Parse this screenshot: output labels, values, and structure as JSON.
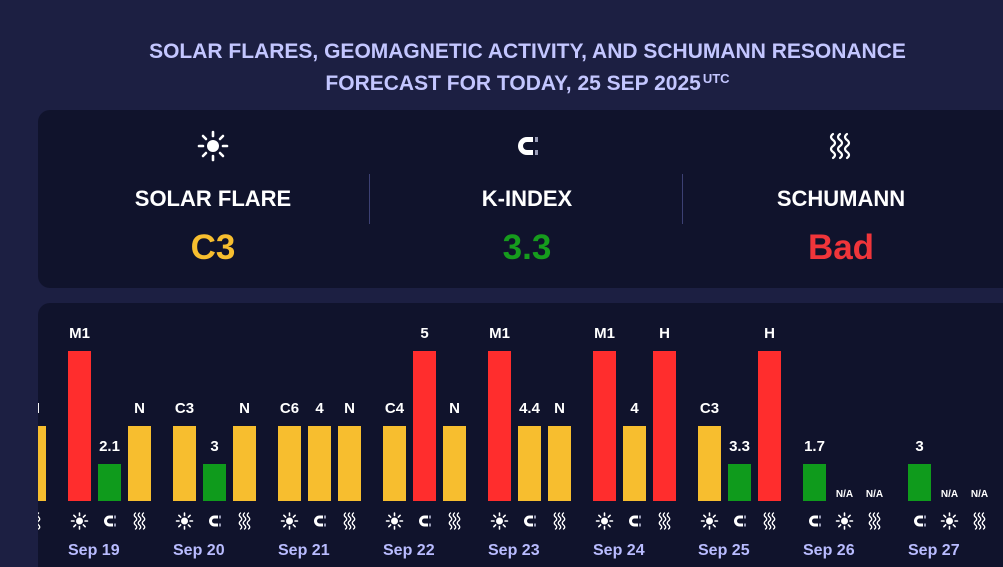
{
  "header": {
    "line1": "SOLAR FLARES, GEOMAGNETIC ACTIVITY, AND SCHUMANN RESONANCE",
    "line2": "FORECAST FOR TODAY, 25 SEP 2025",
    "tz": "UTC"
  },
  "summary": {
    "solar": {
      "label": "SOLAR FLARE",
      "value": "C3",
      "color": "#f7be2f",
      "icon": "sun-icon"
    },
    "kindex": {
      "label": "K-INDEX",
      "value": "3.3",
      "color": "#169c1d",
      "icon": "magnet-icon"
    },
    "schumann": {
      "label": "SCHUMANN",
      "value": "Bad",
      "color": "#f0353a",
      "icon": "waves-icon"
    }
  },
  "colors": {
    "red": "#ff2d2d",
    "yellow": "#f7be2f",
    "green": "#0f9b1c",
    "background": "#1c1f42",
    "panel": "#10132c",
    "date": "#b9bcff"
  },
  "chart_data": {
    "type": "bar",
    "levels": {
      "low": 1,
      "mid": 2,
      "high": 3
    },
    "partial_group": {
      "date": "",
      "bars": [
        {
          "label": "N",
          "level": "mid",
          "color": "yellow",
          "icon": "waves-icon"
        }
      ]
    },
    "days": [
      {
        "date": "Sep 19",
        "bars": [
          {
            "label": "M1",
            "level": "high",
            "color": "red",
            "icon": "sun-icon"
          },
          {
            "label": "2.1",
            "level": "low",
            "color": "green",
            "icon": "magnet-icon"
          },
          {
            "label": "N",
            "level": "mid",
            "color": "yellow",
            "icon": "waves-icon"
          }
        ]
      },
      {
        "date": "Sep 20",
        "bars": [
          {
            "label": "C3",
            "level": "mid",
            "color": "yellow",
            "icon": "sun-icon"
          },
          {
            "label": "3",
            "level": "low",
            "color": "green",
            "icon": "magnet-icon"
          },
          {
            "label": "N",
            "level": "mid",
            "color": "yellow",
            "icon": "waves-icon"
          }
        ]
      },
      {
        "date": "Sep 21",
        "bars": [
          {
            "label": "C6",
            "level": "mid",
            "color": "yellow",
            "icon": "sun-icon"
          },
          {
            "label": "4",
            "level": "mid",
            "color": "yellow",
            "icon": "magnet-icon"
          },
          {
            "label": "N",
            "level": "mid",
            "color": "yellow",
            "icon": "waves-icon"
          }
        ]
      },
      {
        "date": "Sep 22",
        "bars": [
          {
            "label": "C4",
            "level": "mid",
            "color": "yellow",
            "icon": "sun-icon"
          },
          {
            "label": "5",
            "level": "high",
            "color": "red",
            "icon": "magnet-icon"
          },
          {
            "label": "N",
            "level": "mid",
            "color": "yellow",
            "icon": "waves-icon"
          }
        ]
      },
      {
        "date": "Sep 23",
        "bars": [
          {
            "label": "M1",
            "level": "high",
            "color": "red",
            "icon": "sun-icon"
          },
          {
            "label": "4.4",
            "level": "mid",
            "color": "yellow",
            "icon": "magnet-icon"
          },
          {
            "label": "N",
            "level": "mid",
            "color": "yellow",
            "icon": "waves-icon"
          }
        ]
      },
      {
        "date": "Sep 24",
        "bars": [
          {
            "label": "M1",
            "level": "high",
            "color": "red",
            "icon": "sun-icon"
          },
          {
            "label": "4",
            "level": "mid",
            "color": "yellow",
            "icon": "magnet-icon"
          },
          {
            "label": "H",
            "level": "high",
            "color": "red",
            "icon": "waves-icon"
          }
        ]
      },
      {
        "date": "Sep 25",
        "bars": [
          {
            "label": "C3",
            "level": "mid",
            "color": "yellow",
            "icon": "sun-icon"
          },
          {
            "label": "3.3",
            "level": "low",
            "color": "green",
            "icon": "magnet-icon"
          },
          {
            "label": "H",
            "level": "high",
            "color": "red",
            "icon": "waves-icon"
          }
        ]
      },
      {
        "date": "Sep 26",
        "bars": [
          {
            "label": "1.7",
            "level": "low",
            "color": "green",
            "icon": "magnet-icon"
          },
          {
            "label": "N/A",
            "level": "none",
            "color": "",
            "icon": "sun-icon"
          },
          {
            "label": "N/A",
            "level": "none",
            "color": "",
            "icon": "waves-icon"
          }
        ]
      },
      {
        "date": "Sep 27",
        "bars": [
          {
            "label": "3",
            "level": "low",
            "color": "green",
            "icon": "magnet-icon"
          },
          {
            "label": "N/A",
            "level": "none",
            "color": "",
            "icon": "sun-icon"
          },
          {
            "label": "N/A",
            "level": "none",
            "color": "",
            "icon": "waves-icon"
          }
        ]
      }
    ]
  }
}
